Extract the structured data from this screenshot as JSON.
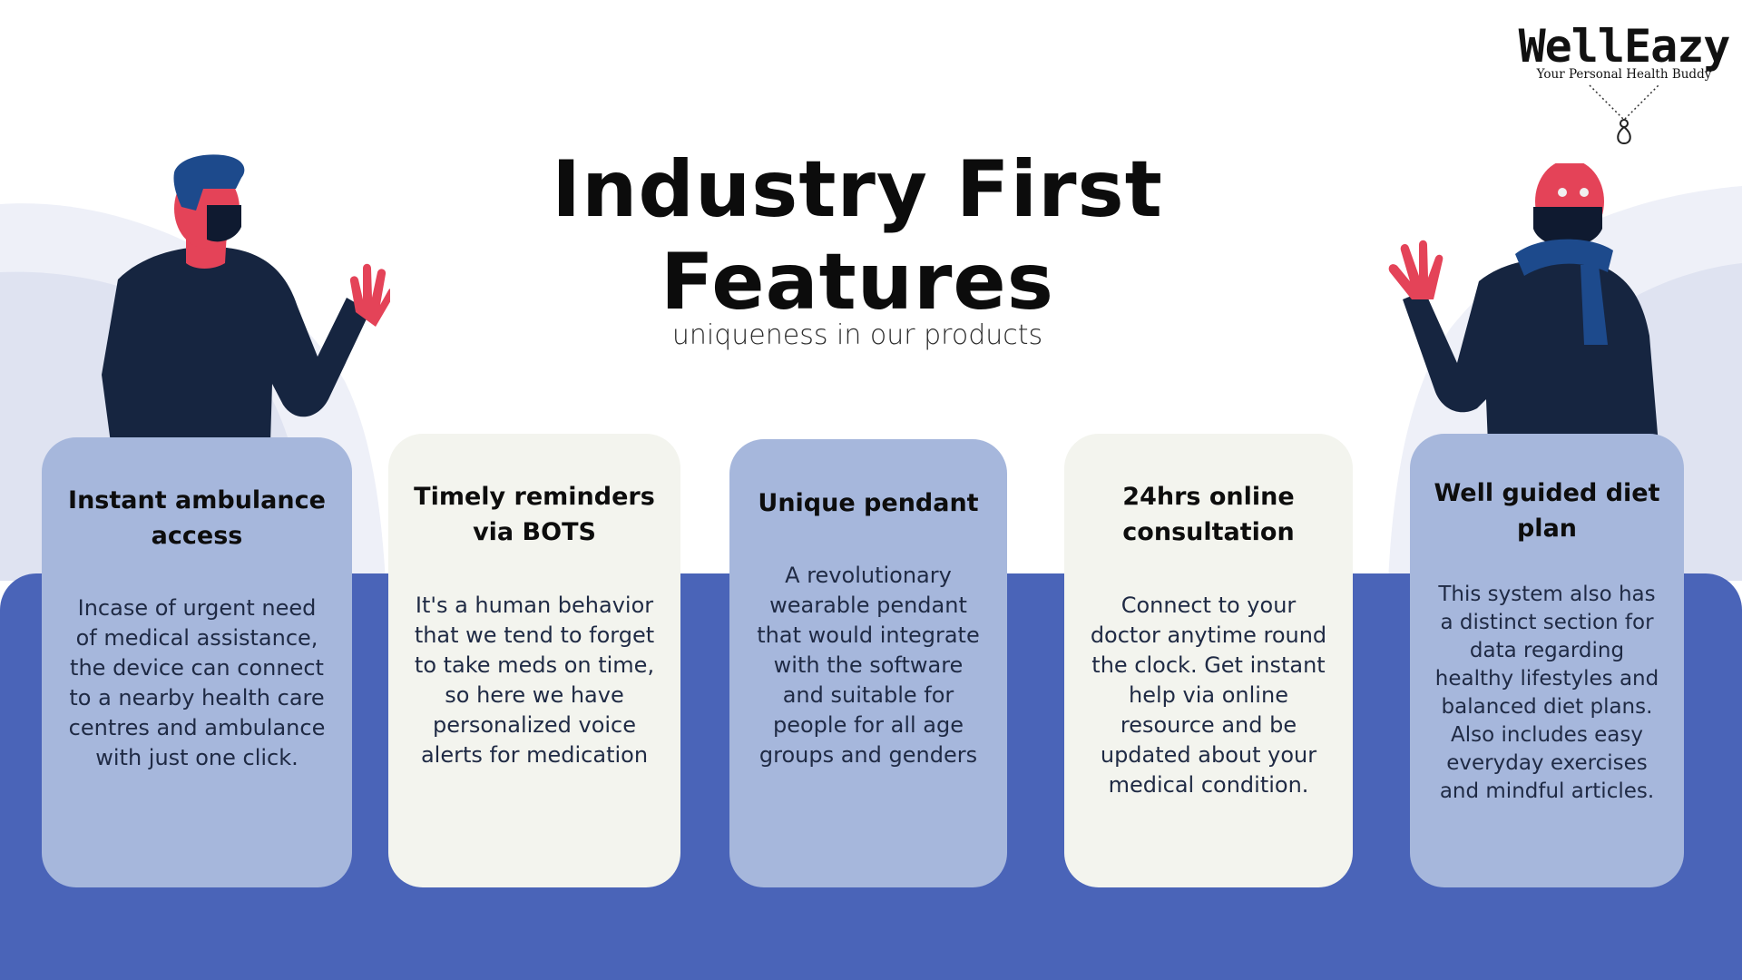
{
  "brand": {
    "name": "WellEazy",
    "tagline": "Your Personal Health Buddy"
  },
  "heading": {
    "title": "Industry First Features",
    "subtitle": "uniqueness in our products"
  },
  "colors": {
    "band": "#4a64b8",
    "card_blue": "#a6b7dc",
    "card_cream": "#f3f4ee",
    "figure_body": "#162540",
    "figure_skin": "#e44358",
    "figure_hair": "#1d4a8c"
  },
  "features": [
    {
      "title": "Instant ambulance access",
      "text": "Incase of urgent need of medical assistance, the device can  connect to a nearby health care centres and ambulance with just one click."
    },
    {
      "title": "Timely reminders via BOTS",
      "text": "It's a human behavior that we tend to forget to take meds on time, so here we have personalized voice alerts for medication"
    },
    {
      "title": "Unique pendant",
      "text": "A revolutionary wearable pendant that would integrate with the software and suitable for people for all age groups and genders"
    },
    {
      "title": "24hrs online consultation",
      "text": "Connect to your doctor anytime round the clock. Get instant help via online resource and be updated about your medical condition."
    },
    {
      "title": "Well guided diet plan",
      "text": "This system also has a distinct section for data regarding healthy lifestyles and  balanced diet plans. Also includes easy everyday exercises and mindful articles."
    }
  ]
}
